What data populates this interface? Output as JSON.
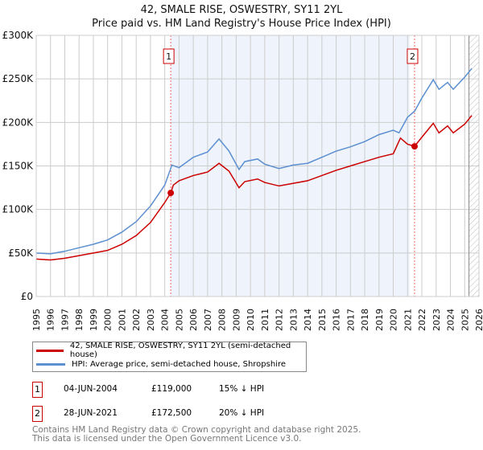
{
  "title": "42, SMALE RISE, OSWESTRY, SY11 2YL",
  "subtitle": "Price paid vs. HM Land Registry's House Price Index (HPI)",
  "chart_data": {
    "type": "line",
    "xlim": [
      1995,
      2026
    ],
    "ylim": [
      0,
      300000
    ],
    "y_ticks": [
      0,
      50000,
      100000,
      150000,
      200000,
      250000,
      300000
    ],
    "y_tick_labels": [
      "£0",
      "£50K",
      "£100K",
      "£150K",
      "£200K",
      "£250K",
      "£300K"
    ],
    "x_ticks": [
      1995,
      1996,
      1997,
      1998,
      1999,
      2000,
      2001,
      2002,
      2003,
      2004,
      2005,
      2006,
      2007,
      2008,
      2009,
      2010,
      2011,
      2012,
      2013,
      2014,
      2015,
      2016,
      2017,
      2018,
      2019,
      2020,
      2021,
      2022,
      2023,
      2024,
      2025,
      2026
    ],
    "series": [
      {
        "name": "42, SMALE RISE, OSWESTRY, SY11 2YL (semi-detached house)",
        "color": "#cc0000",
        "x": [
          1995,
          1996,
          1997,
          1998,
          1999,
          2000,
          2001,
          2002,
          2003,
          2004,
          2004.42,
          2004.6,
          2005,
          2006,
          2007,
          2007.8,
          2008.5,
          2009.2,
          2009.6,
          2010.5,
          2011,
          2012,
          2013,
          2014,
          2015,
          2016,
          2017,
          2018,
          2019,
          2020,
          2020.5,
          2021,
          2021.49,
          2022,
          2022.8,
          2023.2,
          2023.8,
          2024.2,
          2025,
          2025.5
        ],
        "y": [
          43000,
          42000,
          44000,
          47000,
          50000,
          53000,
          60000,
          70000,
          85000,
          108000,
          119000,
          128000,
          133000,
          139000,
          143000,
          153000,
          144000,
          125000,
          132000,
          135000,
          131000,
          127000,
          130000,
          133000,
          139000,
          145000,
          150000,
          155000,
          160000,
          164000,
          182000,
          175000,
          172500,
          183000,
          199000,
          188000,
          196000,
          188000,
          198000,
          208000
        ]
      },
      {
        "name": "HPI: Average price, semi-detached house, Shropshire",
        "color": "#5b8fd0",
        "x": [
          1995,
          1996,
          1997,
          1998,
          1999,
          2000,
          2001,
          2002,
          2003,
          2004,
          2004.5,
          2005,
          2006,
          2007,
          2007.8,
          2008.5,
          2009.2,
          2009.6,
          2010.5,
          2011,
          2012,
          2013,
          2014,
          2015,
          2016,
          2017,
          2018,
          2019,
          2020,
          2020.4,
          2021,
          2021.5,
          2022,
          2022.8,
          2023.2,
          2023.8,
          2024.2,
          2025,
          2025.5
        ],
        "y": [
          50000,
          49000,
          52000,
          56000,
          60000,
          65000,
          74000,
          86000,
          104000,
          128000,
          151000,
          148000,
          160000,
          166000,
          181000,
          167000,
          146000,
          155000,
          158000,
          152000,
          147000,
          151000,
          153000,
          160000,
          167000,
          172000,
          178000,
          186000,
          191000,
          188000,
          206000,
          213000,
          228000,
          249000,
          238000,
          246000,
          238000,
          252000,
          262000
        ]
      }
    ],
    "annotations": [
      {
        "label": "1",
        "x": 2004.42,
        "y": 119000
      },
      {
        "label": "2",
        "x": 2021.49,
        "y": 172500
      }
    ]
  },
  "legend": {
    "items": [
      "42, SMALE RISE, OSWESTRY, SY11 2YL (semi-detached house)",
      "HPI: Average price, semi-detached house, Shropshire"
    ]
  },
  "transactions": [
    {
      "num": "1",
      "date": "04-JUN-2004",
      "price": "£119,000",
      "hpi": "15% ↓ HPI"
    },
    {
      "num": "2",
      "date": "28-JUN-2021",
      "price": "£172,500",
      "hpi": "20% ↓ HPI"
    }
  ],
  "footer": {
    "line1": "Contains HM Land Registry data © Crown copyright and database right 2025.",
    "line2": "This data is licensed under the Open Government Licence v3.0."
  }
}
